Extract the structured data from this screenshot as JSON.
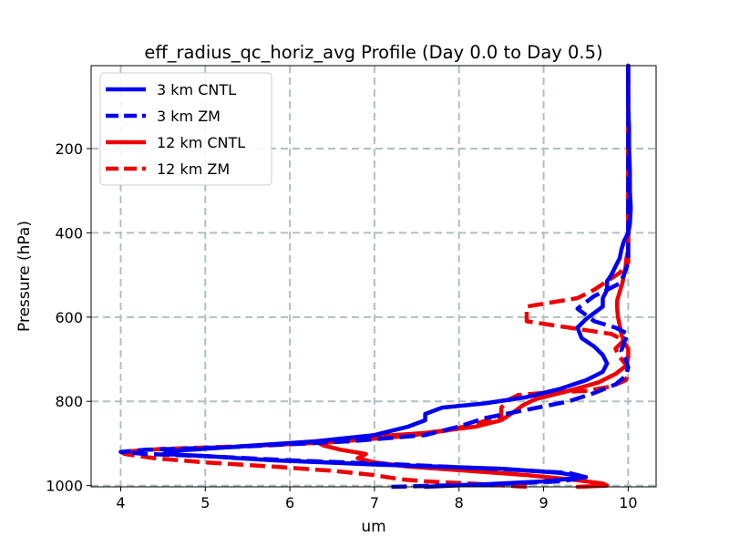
{
  "chart_data": {
    "type": "line",
    "title": "eff_radius_qc_horiz_avg Profile (Day 0.0 to Day 0.5)",
    "xlabel": "um",
    "ylabel": "Pressure (hPa)",
    "xlim": [
      3.65,
      10.33
    ],
    "ylim": [
      1003,
      3
    ],
    "y_inverted": true,
    "xticks": [
      4,
      5,
      6,
      7,
      8,
      9,
      10
    ],
    "yticks": [
      200,
      400,
      600,
      800,
      1000
    ],
    "grid": true,
    "legend_position": "upper-left",
    "series": [
      {
        "name": "3 km CNTL",
        "color": "#0000ee",
        "dash": "solid",
        "points": [
          [
            7.6,
            1003
          ],
          [
            8.3,
            997
          ],
          [
            9.0,
            990
          ],
          [
            9.5,
            980
          ],
          [
            9.2,
            970
          ],
          [
            8.5,
            960
          ],
          [
            7.0,
            950
          ],
          [
            5.8,
            940
          ],
          [
            5.0,
            930
          ],
          [
            4.5,
            925
          ],
          [
            4.6,
            918
          ],
          [
            5.2,
            910
          ],
          [
            6.3,
            895
          ],
          [
            7.0,
            880
          ],
          [
            7.4,
            860
          ],
          [
            7.6,
            845
          ],
          [
            7.6,
            830
          ],
          [
            7.8,
            815
          ],
          [
            8.3,
            805
          ],
          [
            8.8,
            790
          ],
          [
            9.2,
            770
          ],
          [
            9.5,
            750
          ],
          [
            9.7,
            730
          ],
          [
            9.75,
            710
          ],
          [
            9.7,
            690
          ],
          [
            9.6,
            670
          ],
          [
            9.45,
            650
          ],
          [
            9.4,
            625
          ],
          [
            9.5,
            605
          ],
          [
            9.6,
            590
          ],
          [
            9.7,
            575
          ],
          [
            9.7,
            555
          ],
          [
            9.75,
            535
          ],
          [
            9.75,
            515
          ],
          [
            9.8,
            500
          ],
          [
            9.85,
            480
          ],
          [
            9.9,
            460
          ],
          [
            9.92,
            440
          ],
          [
            9.95,
            420
          ],
          [
            10.0,
            400
          ],
          [
            10.02,
            380
          ],
          [
            10.03,
            340
          ],
          [
            10.02,
            300
          ],
          [
            10.02,
            250
          ],
          [
            10.01,
            200
          ],
          [
            10.01,
            150
          ],
          [
            10.0,
            100
          ],
          [
            10.0,
            40
          ],
          [
            10.0,
            3
          ]
        ]
      },
      {
        "name": "3 km ZM",
        "color": "#0000ee",
        "dash": "dashed",
        "points": [
          [
            7.2,
            1003
          ],
          [
            8.4,
            997
          ],
          [
            9.2,
            990
          ],
          [
            9.5,
            980
          ],
          [
            9.3,
            970
          ],
          [
            8.6,
            962
          ],
          [
            7.3,
            950
          ],
          [
            6.0,
            940
          ],
          [
            5.0,
            930
          ],
          [
            4.3,
            925
          ],
          [
            4.0,
            920
          ],
          [
            4.3,
            915
          ],
          [
            5.4,
            908
          ],
          [
            6.7,
            895
          ],
          [
            7.6,
            880
          ],
          [
            8.0,
            860
          ],
          [
            8.3,
            840
          ],
          [
            8.8,
            820
          ],
          [
            9.3,
            800
          ],
          [
            9.6,
            780
          ],
          [
            9.85,
            760
          ],
          [
            9.97,
            740
          ],
          [
            10.0,
            720
          ],
          [
            9.97,
            700
          ],
          [
            9.92,
            680
          ],
          [
            9.95,
            660
          ],
          [
            10.0,
            640
          ],
          [
            9.85,
            625
          ],
          [
            9.6,
            610
          ],
          [
            9.5,
            595
          ],
          [
            9.4,
            580
          ],
          [
            9.5,
            565
          ],
          [
            9.6,
            550
          ],
          [
            9.75,
            535
          ],
          [
            9.9,
            520
          ],
          [
            9.95,
            500
          ],
          [
            10.0,
            470
          ],
          [
            10.0,
            440
          ],
          [
            10.0,
            380
          ],
          [
            10.0,
            300
          ],
          [
            10.0,
            200
          ],
          [
            10.0,
            100
          ],
          [
            10.0,
            3
          ]
        ]
      },
      {
        "name": "12 km CNTL",
        "color": "#ee0000",
        "dash": "solid",
        "points": [
          [
            9.4,
            1003
          ],
          [
            9.75,
            1000
          ],
          [
            9.7,
            995
          ],
          [
            9.3,
            985
          ],
          [
            8.8,
            975
          ],
          [
            8.1,
            965
          ],
          [
            7.4,
            955
          ],
          [
            7.0,
            945
          ],
          [
            6.8,
            935
          ],
          [
            6.9,
            925
          ],
          [
            6.6,
            915
          ],
          [
            6.4,
            905
          ],
          [
            6.3,
            895
          ],
          [
            6.9,
            885
          ],
          [
            7.6,
            875
          ],
          [
            8.2,
            860
          ],
          [
            8.5,
            845
          ],
          [
            8.65,
            825
          ],
          [
            8.75,
            810
          ],
          [
            8.9,
            795
          ],
          [
            9.3,
            775
          ],
          [
            9.65,
            755
          ],
          [
            9.85,
            735
          ],
          [
            9.98,
            715
          ],
          [
            10.0,
            695
          ],
          [
            10.0,
            675
          ],
          [
            9.95,
            660
          ],
          [
            9.92,
            640
          ],
          [
            9.9,
            620
          ],
          [
            9.88,
            600
          ],
          [
            9.87,
            580
          ],
          [
            9.87,
            560
          ],
          [
            9.9,
            540
          ],
          [
            9.93,
            520
          ],
          [
            9.95,
            500
          ],
          [
            9.97,
            480
          ],
          [
            9.98,
            460
          ],
          [
            10.0,
            440
          ],
          [
            10.0,
            400
          ],
          [
            10.0,
            300
          ],
          [
            10.0,
            200
          ],
          [
            10.0,
            100
          ],
          [
            10.0,
            3
          ]
        ]
      },
      {
        "name": "12 km ZM",
        "color": "#ee0000",
        "dash": "dashed",
        "points": [
          [
            8.8,
            1003
          ],
          [
            8.3,
            997
          ],
          [
            7.6,
            990
          ],
          [
            7.3,
            985
          ],
          [
            7.0,
            975
          ],
          [
            6.5,
            965
          ],
          [
            5.8,
            955
          ],
          [
            5.0,
            945
          ],
          [
            4.4,
            935
          ],
          [
            4.05,
            925
          ],
          [
            4.0,
            920
          ],
          [
            4.5,
            913
          ],
          [
            5.4,
            907
          ],
          [
            6.5,
            897
          ],
          [
            7.4,
            882
          ],
          [
            7.9,
            868
          ],
          [
            8.2,
            853
          ],
          [
            8.5,
            835
          ],
          [
            8.5,
            815
          ],
          [
            8.6,
            795
          ],
          [
            8.7,
            785
          ],
          [
            9.0,
            780
          ],
          [
            9.5,
            775
          ],
          [
            9.8,
            765
          ],
          [
            9.97,
            750
          ],
          [
            10.0,
            735
          ],
          [
            9.98,
            715
          ],
          [
            9.9,
            695
          ],
          [
            9.85,
            675
          ],
          [
            9.95,
            655
          ],
          [
            9.8,
            640
          ],
          [
            9.3,
            625
          ],
          [
            8.8,
            610
          ],
          [
            8.8,
            590
          ],
          [
            8.8,
            575
          ],
          [
            9.1,
            565
          ],
          [
            9.4,
            555
          ],
          [
            9.6,
            535
          ],
          [
            9.75,
            515
          ],
          [
            9.9,
            495
          ],
          [
            10.0,
            470
          ],
          [
            10.0,
            440
          ],
          [
            10.0,
            400
          ],
          [
            10.0,
            300
          ],
          [
            10.0,
            200
          ],
          [
            10.0,
            100
          ],
          [
            10.0,
            3
          ]
        ]
      }
    ]
  }
}
